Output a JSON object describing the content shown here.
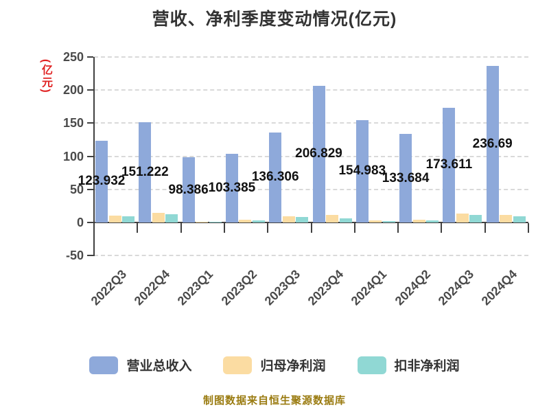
{
  "title": "营收、净利季度变动情况(亿元)",
  "y_axis": {
    "unit_label": "(亿元)",
    "unit_color": "#e02222",
    "tick_values": [
      250,
      200,
      150,
      100,
      50,
      0,
      -50
    ]
  },
  "chart_data": {
    "type": "bar",
    "title": "营收、净利季度变动情况(亿元)",
    "categories": [
      "2022Q3",
      "2022Q4",
      "2023Q1",
      "2023Q2",
      "2023Q3",
      "2023Q4",
      "2024Q1",
      "2024Q2",
      "2024Q3",
      "2024Q4"
    ],
    "series": [
      {
        "name": "营业总收入",
        "color": "#8EA9DA",
        "values": [
          123.932,
          151.222,
          98.386,
          103.385,
          136.306,
          206.829,
          154.983,
          133.684,
          173.611,
          236.69
        ]
      },
      {
        "name": "归母净利润",
        "color": "#FBDCA2",
        "values": [
          10.4,
          15.0,
          0.5,
          3.8,
          9.5,
          11.8,
          3.1,
          4.2,
          13.5,
          11.0
        ]
      },
      {
        "name": "扣非净利润",
        "color": "#90D8D4",
        "values": [
          9.7,
          12.0,
          0.3,
          3.4,
          7.8,
          5.8,
          2.1,
          3.2,
          11.8,
          9.4
        ]
      }
    ],
    "value_labels": [
      "123.932",
      "151.222",
      "98.386",
      "103.385",
      "136.306",
      "206.829",
      "154.983",
      "133.684",
      "173.611",
      "236.69"
    ],
    "labeled_series": "营业总收入",
    "ylim": [
      -50,
      250
    ],
    "y_ticks": [
      250,
      200,
      150,
      100,
      50,
      0,
      -50
    ],
    "grid": true,
    "legend_position": "bottom",
    "axis_color": "#404040",
    "grid_color": "#d9d9d9",
    "value_label_color": "#111111",
    "tick_label_color": "#4a4a4a"
  },
  "legend": {
    "items": [
      {
        "label": "营业总收入",
        "color": "#8EA9DA"
      },
      {
        "label": "归母净利润",
        "color": "#FBDCA2"
      },
      {
        "label": "扣非净利润",
        "color": "#90D8D4"
      }
    ]
  },
  "footer": {
    "source_text": "制图数据来自恒生聚源数据库",
    "color": "#9a7b10"
  }
}
